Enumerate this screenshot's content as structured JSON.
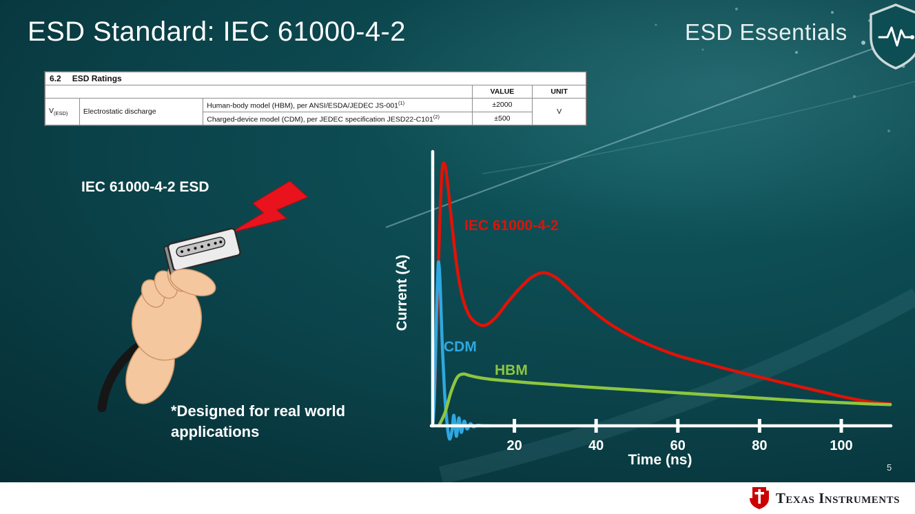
{
  "slide": {
    "title": "ESD Standard: IEC 61000-4-2",
    "brand_series": "ESD Essentials",
    "illustration_label": "IEC 61000-4-2 ESD",
    "footnote_line1": "*Designed for real world",
    "footnote_line2": "applications",
    "page_number": "5"
  },
  "ratings_table": {
    "section_number": "6.2",
    "section_title": "ESD Ratings",
    "col_value": "VALUE",
    "col_unit": "UNIT",
    "symbol": "V",
    "symbol_sub": "(ESD)",
    "parameter": "Electrostatic discharge",
    "rows": [
      {
        "description": "Human-body model (HBM), per ANSI/ESDA/JEDEC JS-001",
        "description_sup": "(1)",
        "value": "±2000"
      },
      {
        "description": "Charged-device model (CDM), per JEDEC specification JESD22-C101",
        "description_sup": "(2)",
        "value": "±500"
      }
    ],
    "unit": "V"
  },
  "chart_data": {
    "type": "line",
    "title": "",
    "xlabel": "Time (ns)",
    "ylabel": "Current (A)",
    "xlim": [
      0,
      112
    ],
    "ylim": [
      -0.06,
      1.05
    ],
    "x_ticks": [
      20,
      40,
      60,
      80,
      100
    ],
    "y_ticks": [],
    "grid": false,
    "legend": "inline-labels",
    "note": "y values normalized to IEC 61000-4-2 peak = 1.0 (y axis unlabeled in source)",
    "series": [
      {
        "name": "IEC 61000-4-2",
        "color": "#e11207",
        "points": [
          [
            0,
            0.02
          ],
          [
            0.6,
            0.18
          ],
          [
            1.4,
            0.62
          ],
          [
            2.2,
            0.95
          ],
          [
            2.9,
            1.0
          ],
          [
            3.7,
            0.92
          ],
          [
            4.7,
            0.77
          ],
          [
            5.9,
            0.61
          ],
          [
            7.3,
            0.49
          ],
          [
            9,
            0.42
          ],
          [
            11,
            0.39
          ],
          [
            13,
            0.385
          ],
          [
            15.5,
            0.415
          ],
          [
            18,
            0.465
          ],
          [
            21,
            0.52
          ],
          [
            24,
            0.565
          ],
          [
            27,
            0.585
          ],
          [
            30,
            0.568
          ],
          [
            33,
            0.528
          ],
          [
            36,
            0.483
          ],
          [
            40,
            0.428
          ],
          [
            44,
            0.383
          ],
          [
            49,
            0.338
          ],
          [
            54,
            0.303
          ],
          [
            60,
            0.268
          ],
          [
            66,
            0.242
          ],
          [
            72,
            0.217
          ],
          [
            78,
            0.194
          ],
          [
            84,
            0.171
          ],
          [
            90,
            0.149
          ],
          [
            96,
            0.127
          ],
          [
            101,
            0.109
          ],
          [
            106,
            0.094
          ],
          [
            110,
            0.086
          ],
          [
            112,
            0.084
          ]
        ]
      },
      {
        "name": "CDM",
        "color": "#2fa8e0",
        "points": [
          [
            0,
            0
          ],
          [
            0.4,
            0.1
          ],
          [
            0.9,
            0.42
          ],
          [
            1.3,
            0.6
          ],
          [
            1.5,
            0.62
          ],
          [
            1.8,
            0.55
          ],
          [
            2.3,
            0.33
          ],
          [
            2.9,
            0.13
          ],
          [
            3.5,
            0.01
          ],
          [
            4.1,
            -0.05
          ],
          [
            4.7,
            -0.02
          ],
          [
            5.2,
            0.04
          ],
          [
            5.8,
            -0.04
          ],
          [
            6.4,
            0.03
          ],
          [
            7,
            -0.025
          ],
          [
            7.7,
            0.018
          ],
          [
            8.4,
            -0.012
          ],
          [
            9.2,
            0.008
          ],
          [
            10,
            -0.004
          ],
          [
            11,
            0.002
          ],
          [
            12.5,
            0
          ],
          [
            14,
            0
          ]
        ]
      },
      {
        "name": "HBM",
        "color": "#8dc63f",
        "points": [
          [
            1.5,
            0
          ],
          [
            3,
            0.05
          ],
          [
            4.5,
            0.13
          ],
          [
            6,
            0.185
          ],
          [
            7.5,
            0.198
          ],
          [
            9,
            0.192
          ],
          [
            11,
            0.185
          ],
          [
            14,
            0.178
          ],
          [
            18,
            0.172
          ],
          [
            24,
            0.164
          ],
          [
            30,
            0.157
          ],
          [
            38,
            0.148
          ],
          [
            46,
            0.14
          ],
          [
            54,
            0.132
          ],
          [
            62,
            0.124
          ],
          [
            70,
            0.116
          ],
          [
            78,
            0.108
          ],
          [
            86,
            0.1
          ],
          [
            94,
            0.093
          ],
          [
            102,
            0.087
          ],
          [
            108,
            0.083
          ],
          [
            112,
            0.081
          ]
        ]
      }
    ]
  },
  "footer": {
    "brand": "Texas Instruments",
    "brand_color": "#cc0000"
  }
}
